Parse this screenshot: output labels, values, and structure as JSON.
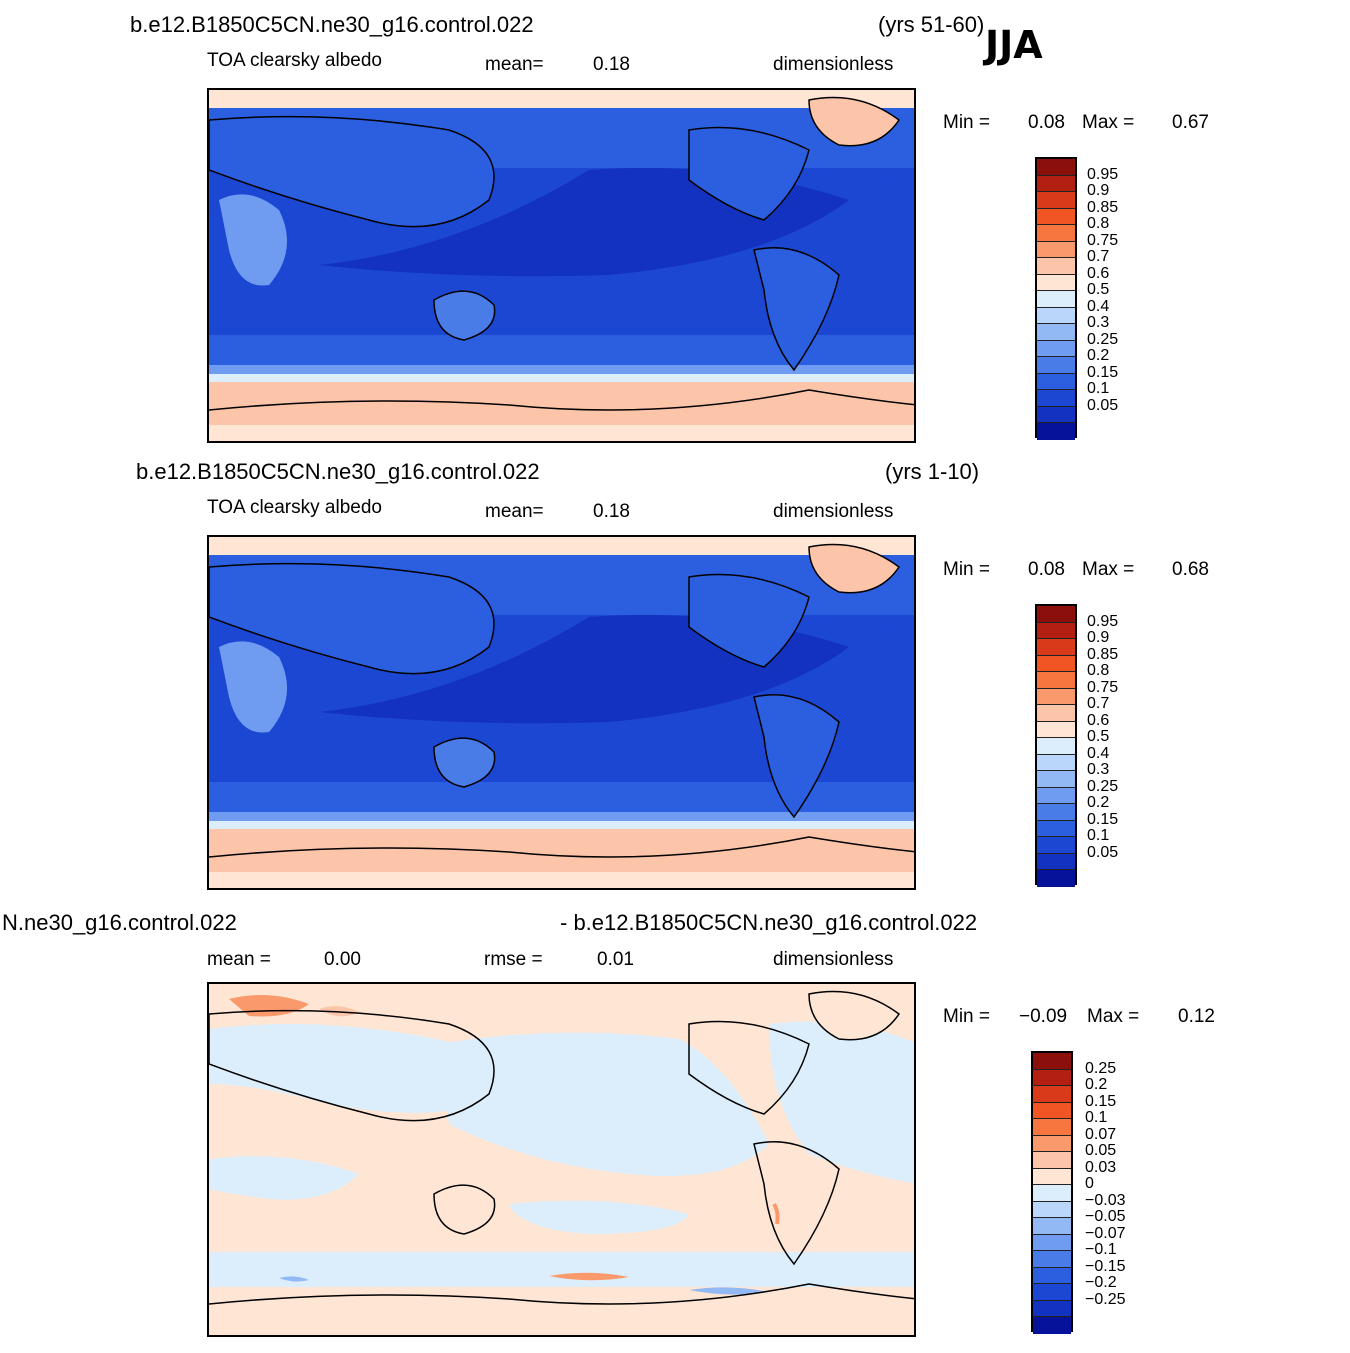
{
  "season": "JJA",
  "panels": [
    {
      "case": "b.e12.B1850C5CN.ne30_g16.control.022",
      "years": "(yrs 51-60)",
      "variable": "TOA  clearsky  albedo",
      "stat1_label": "mean=",
      "stat1_value": "0.18",
      "units": "dimensionless",
      "min_label": "Min  =",
      "min_value": "0.08",
      "max_label": "Max  =",
      "max_value": "0.67"
    },
    {
      "case": "b.e12.B1850C5CN.ne30_g16.control.022",
      "years": "(yrs 1-10)",
      "variable": "TOA  clearsky  albedo",
      "stat1_label": "mean=",
      "stat1_value": "0.18",
      "units": "dimensionless",
      "min_label": "Min  =",
      "min_value": "0.08",
      "max_label": "Max  =",
      "max_value": "0.68"
    },
    {
      "case_left": "N.ne30_g16.control.022",
      "case_right": "- b.e12.B1850C5CN.ne30_g16.control.022",
      "stat1_label": "mean  =",
      "stat1_value": "0.00",
      "stat2_label": "rmse  =",
      "stat2_value": "0.01",
      "units": "dimensionless",
      "min_label": "Min  =",
      "min_value": "−0.09",
      "max_label": "Max  =",
      "max_value": "0.12"
    }
  ],
  "colorbar_abs": {
    "labels": [
      "0.95",
      "0.9",
      "0.85",
      "0.8",
      "0.75",
      "0.7",
      "0.6",
      "0.5",
      "0.4",
      "0.3",
      "0.25",
      "0.2",
      "0.15",
      "0.1",
      "0.05"
    ],
    "colors": [
      "#8b0f0a",
      "#b32012",
      "#d93a1a",
      "#f25524",
      "#f7763f",
      "#fa9a6c",
      "#fcc4a8",
      "#ffe6d4",
      "#dceefc",
      "#bad6fa",
      "#93b9f5",
      "#6f9cf0",
      "#4a7ce8",
      "#2b5fe0",
      "#1c47d3",
      "#1232bf",
      "#06129a"
    ]
  },
  "colorbar_diff": {
    "labels": [
      "0.25",
      "0.2",
      "0.15",
      "0.1",
      "0.07",
      "0.05",
      "0.03",
      "0",
      "−0.03",
      "−0.05",
      "−0.07",
      "−0.1",
      "−0.15",
      "−0.2",
      "−0.25"
    ],
    "colors": [
      "#8b0f0a",
      "#b32012",
      "#d93a1a",
      "#f25524",
      "#f7763f",
      "#fa9a6c",
      "#fcc4a8",
      "#ffe6d4",
      "#dceefc",
      "#bad6fa",
      "#93b9f5",
      "#6f9cf0",
      "#4a7ce8",
      "#2b5fe0",
      "#1c47d3",
      "#1232bf",
      "#06129a"
    ]
  }
}
